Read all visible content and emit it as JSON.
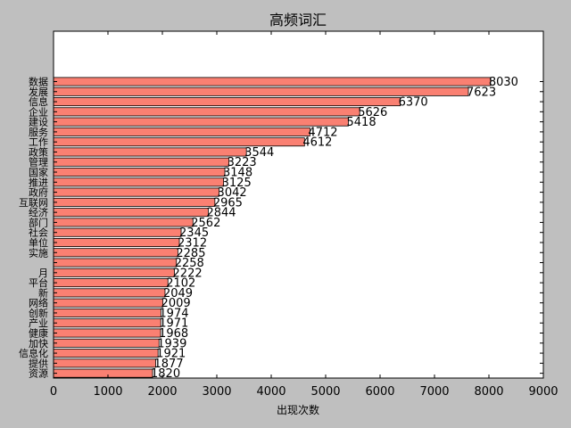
{
  "chart_data": {
    "type": "bar",
    "orientation": "horizontal",
    "title": "高频词汇",
    "xlabel": "出现次数",
    "ylabel": "",
    "xlim": [
      0,
      9000
    ],
    "xticks": [
      "0",
      "1000",
      "2000",
      "3000",
      "4000",
      "5000",
      "6000",
      "7000",
      "8000",
      "9000"
    ],
    "grid": false,
    "bar_color": "#fa8072",
    "categories": [
      "数据",
      "发展",
      "信息",
      "企业",
      "建设",
      "服务",
      "工作",
      "政策",
      "管理",
      "国家",
      "推进",
      "政府",
      "互联网",
      "经济",
      "部门",
      "社会",
      "单位",
      "实施",
      "",
      "月",
      "平台",
      "新",
      "网络",
      "创新",
      "产业",
      "健康",
      "加快",
      "信息化",
      "提供",
      "资源"
    ],
    "values": [
      8030,
      7623,
      6370,
      5626,
      5418,
      4712,
      4612,
      3544,
      3223,
      3148,
      3125,
      3042,
      2965,
      2844,
      2562,
      2345,
      2312,
      2285,
      2258,
      2222,
      2102,
      2049,
      2009,
      1974,
      1971,
      1968,
      1939,
      1921,
      1877,
      1820
    ],
    "value_labels": [
      "8030",
      "7623",
      "6370",
      "5626",
      "5418",
      "4712",
      "4612",
      "3544",
      "3223",
      "3148",
      "3125",
      "3042",
      "2965",
      "2844",
      "2562",
      "2345",
      "2312",
      "2285",
      "2258",
      "2222",
      "2102",
      "2049",
      "2009",
      "1974",
      "1971",
      "1968",
      "1939",
      "1921",
      "1877",
      "1820"
    ]
  }
}
